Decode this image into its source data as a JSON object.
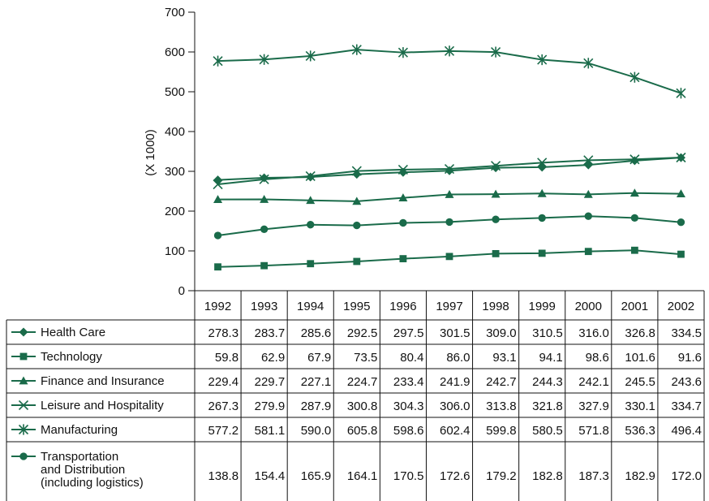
{
  "chart_data": {
    "type": "line",
    "ylabel": "(X 1000)",
    "ylim": [
      0,
      700
    ],
    "yticks": [
      0,
      100,
      200,
      300,
      400,
      500,
      600,
      700
    ],
    "categories": [
      "1992",
      "1993",
      "1994",
      "1995",
      "1996",
      "1997",
      "1998",
      "1999",
      "2000",
      "2001",
      "2002"
    ],
    "grid": false,
    "legend_placement": "table-left",
    "line_color": "#1a6b4a",
    "series": [
      {
        "name": "Health Care",
        "marker": "diamond",
        "values": [
          278.3,
          283.7,
          285.6,
          292.5,
          297.5,
          301.5,
          309.0,
          310.5,
          316.0,
          326.8,
          334.5
        ],
        "labels": [
          "278.3",
          "283.7",
          "285.6",
          "292.5",
          "297.5",
          "301.5",
          "309.0",
          "310.5",
          "316.0",
          "326.8",
          "334.5"
        ]
      },
      {
        "name": "Technology",
        "marker": "square",
        "values": [
          59.8,
          62.9,
          67.9,
          73.5,
          80.4,
          86.0,
          93.1,
          94.1,
          98.6,
          101.6,
          91.6
        ],
        "labels": [
          "59.8",
          "62.9",
          "67.9",
          "73.5",
          "80.4",
          "86.0",
          "93.1",
          "94.1",
          "98.6",
          "101.6",
          "91.6"
        ]
      },
      {
        "name": "Finance and Insurance",
        "marker": "triangle",
        "values": [
          229.4,
          229.7,
          227.1,
          224.7,
          233.4,
          241.9,
          242.7,
          244.3,
          242.1,
          245.5,
          243.6
        ],
        "labels": [
          "229.4",
          "229.7",
          "227.1",
          "224.7",
          "233.4",
          "241.9",
          "242.7",
          "244.3",
          "242.1",
          "245.5",
          "243.6"
        ]
      },
      {
        "name": "Leisure and Hospitality",
        "marker": "x",
        "values": [
          267.3,
          279.9,
          287.9,
          300.8,
          304.3,
          306.0,
          313.8,
          321.8,
          327.9,
          330.1,
          334.7
        ],
        "labels": [
          "267.3",
          "279.9",
          "287.9",
          "300.8",
          "304.3",
          "306.0",
          "313.8",
          "321.8",
          "327.9",
          "330.1",
          "334.7"
        ]
      },
      {
        "name": "Manufacturing",
        "marker": "asterisk",
        "values": [
          577.2,
          581.1,
          590.0,
          605.8,
          598.6,
          602.4,
          599.8,
          580.5,
          571.8,
          536.3,
          496.4
        ],
        "labels": [
          "577.2",
          "581.1",
          "590.0",
          "605.8",
          "598.6",
          "602.4",
          "599.8",
          "580.5",
          "571.8",
          "536.3",
          "496.4"
        ]
      },
      {
        "name": "Transportation and Distribution (including logistics)",
        "name_lines": [
          "Transportation",
          "and Distribution",
          "(including logistics)"
        ],
        "marker": "circle",
        "values": [
          138.8,
          154.4,
          165.9,
          164.1,
          170.5,
          172.6,
          179.2,
          182.8,
          187.3,
          182.9,
          172.0
        ],
        "labels": [
          "138.8",
          "154.4",
          "165.9",
          "164.1",
          "170.5",
          "172.6",
          "179.2",
          "182.8",
          "187.3",
          "182.9",
          "172.0"
        ]
      }
    ]
  }
}
